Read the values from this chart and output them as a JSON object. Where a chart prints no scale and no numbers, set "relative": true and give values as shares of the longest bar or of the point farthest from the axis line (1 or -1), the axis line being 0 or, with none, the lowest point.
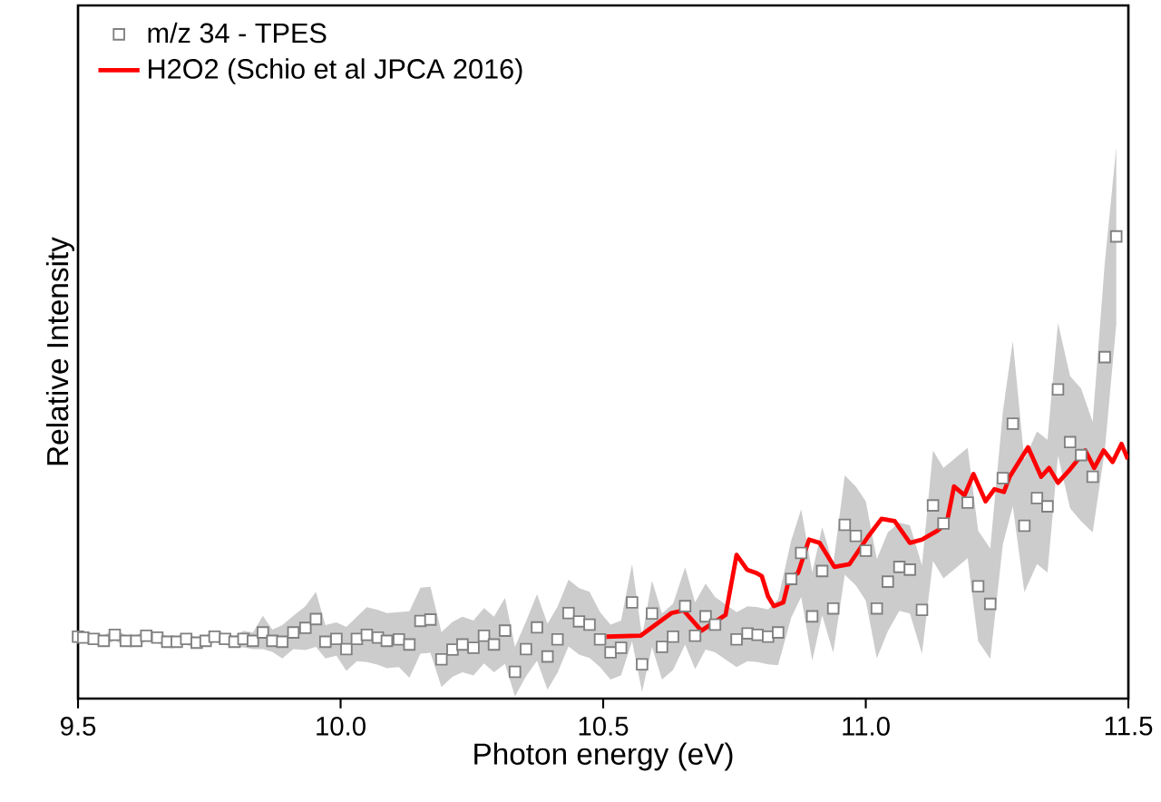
{
  "chart_data": {
    "type": "scatter",
    "relative": true,
    "xlabel": "Photon energy (eV)",
    "ylabel": "Relative Intensity",
    "xlim": [
      9.5,
      11.5
    ],
    "xticks": [
      {
        "value": 9.5,
        "label": "9.5"
      },
      {
        "value": 10.0,
        "label": "10.0"
      },
      {
        "value": 10.5,
        "label": "10.5"
      },
      {
        "value": 11.0,
        "label": "11.0"
      },
      {
        "value": 11.5,
        "label": "11.5"
      }
    ],
    "legend": "top left",
    "series": [
      {
        "name": "m/z 34 - TPES",
        "color": "#808080",
        "marker": "square",
        "x": [
          9.5,
          9.51,
          9.53,
          9.549,
          9.57,
          9.591,
          9.611,
          9.63,
          9.651,
          9.67,
          9.688,
          9.706,
          9.726,
          9.743,
          9.76,
          9.78,
          9.798,
          9.815,
          9.833,
          9.852,
          9.87,
          9.889,
          9.91,
          9.933,
          9.953,
          9.971,
          9.992,
          10.011,
          10.031,
          10.05,
          10.071,
          10.088,
          10.111,
          10.131,
          10.152,
          10.171,
          10.192,
          10.213,
          10.232,
          10.253,
          10.273,
          10.292,
          10.313,
          10.332,
          10.353,
          10.374,
          10.394,
          10.413,
          10.434,
          10.454,
          10.474,
          10.494,
          10.514,
          10.534,
          10.555,
          10.574,
          10.593,
          10.612,
          10.633,
          10.656,
          10.675,
          10.695,
          10.713,
          10.754,
          10.775,
          10.794,
          10.814,
          10.833,
          10.858,
          10.877,
          10.898,
          10.917,
          10.938,
          10.96,
          10.981,
          11.0,
          11.021,
          11.042,
          11.064,
          11.084,
          11.107,
          11.128,
          11.148,
          11.194,
          11.214,
          11.237,
          11.261,
          11.28,
          11.302,
          11.326,
          11.346,
          11.366,
          11.389,
          11.41,
          11.432,
          11.455,
          11.477
        ],
        "values": [
          0.134,
          0.132,
          0.129,
          0.125,
          0.138,
          0.125,
          0.125,
          0.136,
          0.132,
          0.123,
          0.123,
          0.129,
          0.121,
          0.125,
          0.134,
          0.129,
          0.123,
          0.129,
          0.125,
          0.143,
          0.125,
          0.123,
          0.143,
          0.153,
          0.172,
          0.123,
          0.129,
          0.107,
          0.129,
          0.138,
          0.132,
          0.125,
          0.128,
          0.117,
          0.168,
          0.171,
          0.085,
          0.106,
          0.117,
          0.11,
          0.136,
          0.117,
          0.147,
          0.058,
          0.107,
          0.154,
          0.091,
          0.128,
          0.185,
          0.167,
          0.16,
          0.128,
          0.1,
          0.11,
          0.208,
          0.074,
          0.184,
          0.112,
          0.134,
          0.2,
          0.136,
          0.178,
          0.16,
          0.128,
          0.141,
          0.138,
          0.134,
          0.143,
          0.259,
          0.315,
          0.178,
          0.276,
          0.195,
          0.376,
          0.352,
          0.32,
          0.195,
          0.253,
          0.285,
          0.279,
          0.192,
          0.418,
          0.379,
          0.424,
          0.243,
          0.205,
          0.477,
          0.595,
          0.374,
          0.434,
          0.416,
          0.669,
          0.555,
          0.527,
          0.48,
          0.739,
          1.0
        ],
        "lower": [
          0.122,
          0.121,
          0.117,
          0.113,
          0.126,
          0.113,
          0.113,
          0.124,
          0.121,
          0.111,
          0.111,
          0.117,
          0.109,
          0.113,
          0.122,
          0.117,
          0.111,
          0.111,
          0.107,
          0.107,
          0.101,
          0.087,
          0.107,
          0.105,
          0.112,
          0.087,
          0.093,
          0.06,
          0.081,
          0.079,
          0.073,
          0.066,
          0.068,
          0.045,
          0.097,
          0.099,
          0.025,
          0.047,
          0.057,
          0.05,
          0.076,
          0.057,
          0.075,
          0.005,
          0.048,
          0.082,
          0.019,
          0.056,
          0.113,
          0.095,
          0.088,
          0.068,
          0.041,
          0.05,
          0.124,
          0.014,
          0.112,
          0.041,
          0.062,
          0.117,
          0.064,
          0.106,
          0.1,
          0.068,
          0.081,
          0.079,
          0.074,
          0.072,
          0.175,
          0.22,
          0.082,
          0.18,
          0.099,
          0.268,
          0.245,
          0.212,
          0.087,
          0.146,
          0.19,
          0.184,
          0.097,
          0.298,
          0.26,
          0.304,
          0.124,
          0.086,
          0.334,
          0.416,
          0.23,
          0.291,
          0.273,
          0.526,
          0.412,
          0.384,
          0.36,
          0.536,
          0.811
        ],
        "upper": [
          0.146,
          0.144,
          0.141,
          0.137,
          0.15,
          0.137,
          0.137,
          0.148,
          0.144,
          0.135,
          0.135,
          0.141,
          0.132,
          0.137,
          0.146,
          0.141,
          0.135,
          0.147,
          0.143,
          0.179,
          0.149,
          0.159,
          0.179,
          0.2,
          0.231,
          0.159,
          0.165,
          0.155,
          0.177,
          0.198,
          0.192,
          0.185,
          0.187,
          0.189,
          0.24,
          0.242,
          0.144,
          0.166,
          0.177,
          0.169,
          0.196,
          0.177,
          0.218,
          0.112,
          0.167,
          0.226,
          0.162,
          0.199,
          0.257,
          0.239,
          0.231,
          0.187,
          0.16,
          0.169,
          0.291,
          0.134,
          0.255,
          0.184,
          0.205,
          0.284,
          0.208,
          0.249,
          0.22,
          0.187,
          0.2,
          0.198,
          0.193,
          0.215,
          0.342,
          0.41,
          0.273,
          0.371,
          0.29,
          0.483,
          0.459,
          0.427,
          0.302,
          0.36,
          0.381,
          0.375,
          0.288,
          0.537,
          0.499,
          0.543,
          0.363,
          0.325,
          0.621,
          0.774,
          0.517,
          0.578,
          0.56,
          0.813,
          0.698,
          0.671,
          0.599,
          0.942,
          1.193
        ]
      },
      {
        "name": "H2O2 (Schio et al JPCA 2016)",
        "type": "line",
        "color": "#ff0000",
        "x": [
          10.506,
          10.571,
          10.63,
          10.653,
          10.687,
          10.733,
          10.754,
          10.774,
          10.791,
          10.802,
          10.814,
          10.825,
          10.843,
          10.854,
          10.871,
          10.892,
          10.912,
          10.94,
          10.969,
          11.004,
          11.03,
          11.055,
          11.084,
          11.107,
          11.136,
          11.154,
          11.168,
          11.188,
          11.205,
          11.228,
          11.245,
          11.263,
          11.274,
          11.309,
          11.334,
          11.349,
          11.366,
          11.389,
          11.418,
          11.435,
          11.453,
          11.47,
          11.487,
          11.499
        ],
        "values": [
          0.134,
          0.136,
          0.185,
          0.191,
          0.147,
          0.181,
          0.311,
          0.279,
          0.272,
          0.265,
          0.221,
          0.2,
          0.208,
          0.259,
          0.272,
          0.344,
          0.337,
          0.285,
          0.291,
          0.35,
          0.389,
          0.384,
          0.337,
          0.344,
          0.363,
          0.379,
          0.459,
          0.44,
          0.486,
          0.427,
          0.453,
          0.447,
          0.48,
          0.544,
          0.48,
          0.499,
          0.467,
          0.496,
          0.537,
          0.499,
          0.537,
          0.512,
          0.551,
          0.518
        ]
      }
    ]
  }
}
